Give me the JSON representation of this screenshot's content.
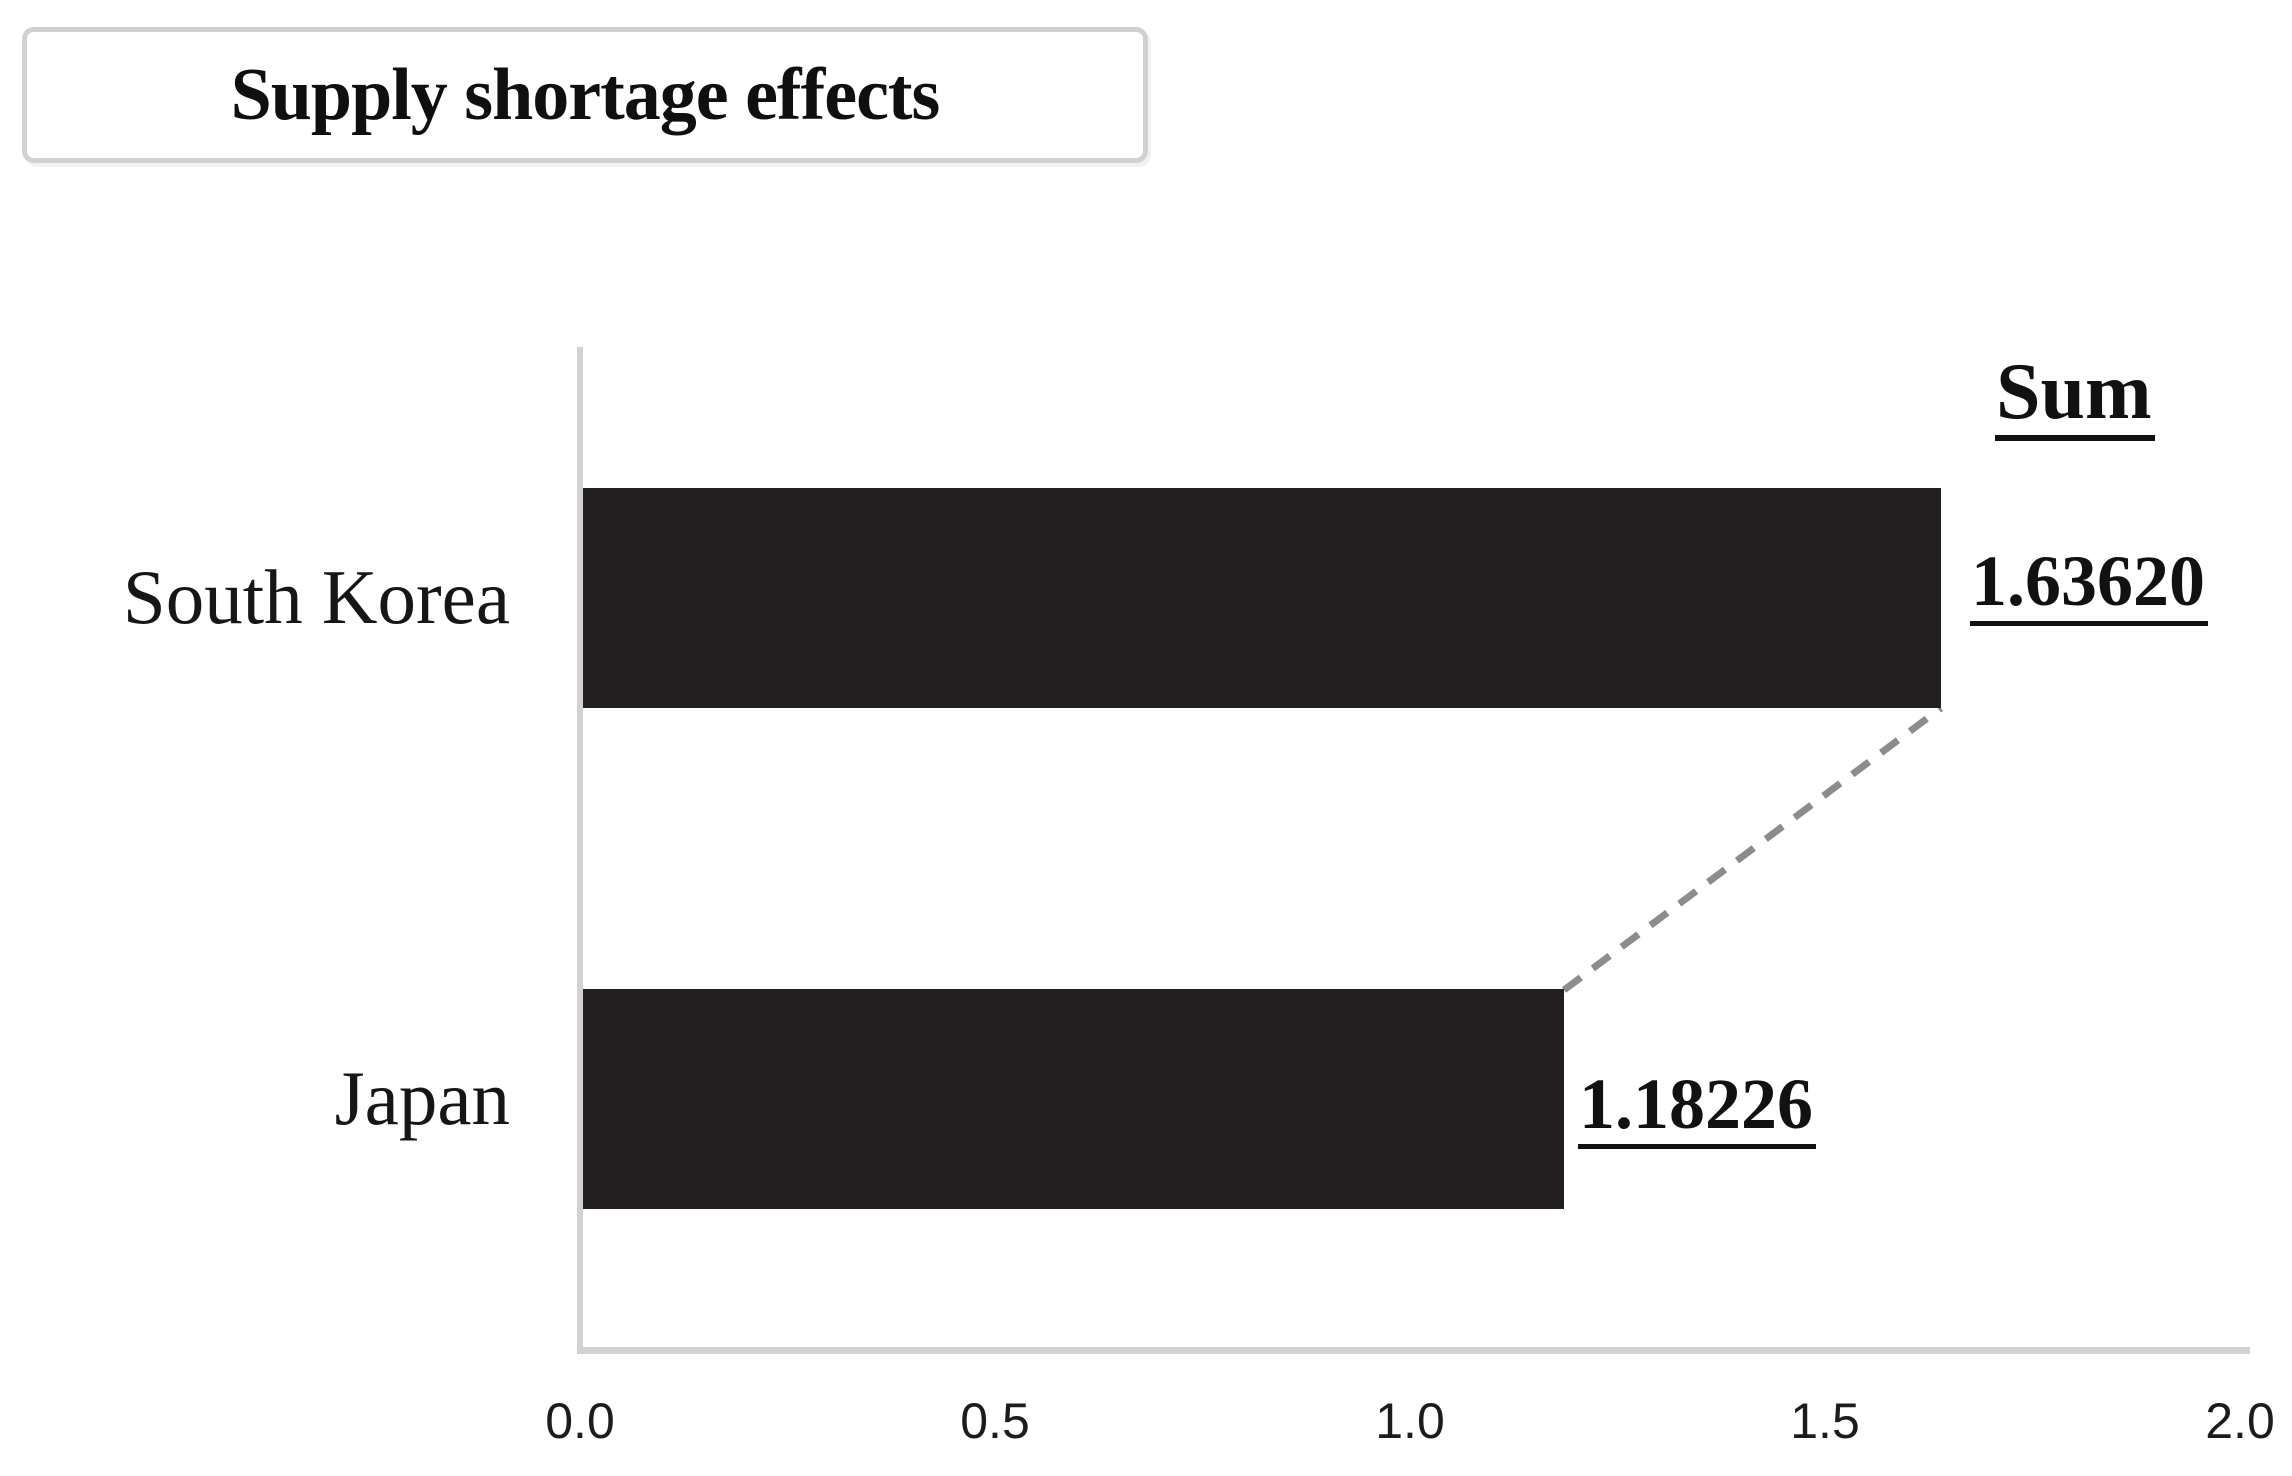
{
  "chart_data": {
    "type": "bar",
    "orientation": "horizontal",
    "title": "Supply shortage effects",
    "categories": [
      "South Korea",
      "Japan"
    ],
    "values": [
      1.6362,
      1.18226
    ],
    "value_labels": [
      "1.63620",
      "1.18226"
    ],
    "annotation_header": "Sum",
    "xlabel": "",
    "ylabel": "",
    "xlim": [
      0.0,
      2.0
    ],
    "x_ticks": [
      "0.0",
      "0.5",
      "1.0",
      "1.5",
      "2.0"
    ],
    "grid": false,
    "legend": "none",
    "bar_color": "#231f20",
    "axis_color": "#d2d2d2",
    "text_color": "#111111",
    "connector_color": "#8c8c8c",
    "connector_style": "dashed",
    "connector_note": "dashed line links end of South Korea bar to end of Japan bar"
  }
}
